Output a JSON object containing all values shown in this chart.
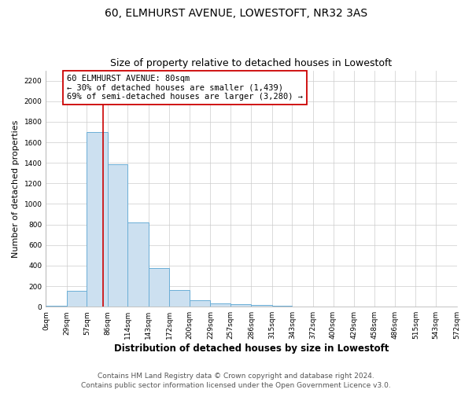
{
  "title": "60, ELMHURST AVENUE, LOWESTOFT, NR32 3AS",
  "subtitle": "Size of property relative to detached houses in Lowestoft",
  "xlabel": "Distribution of detached houses by size in Lowestoft",
  "ylabel": "Number of detached properties",
  "bar_edges": [
    0,
    29,
    57,
    86,
    114,
    143,
    172,
    200,
    229,
    257,
    286,
    315,
    343,
    372,
    400,
    429,
    458,
    486,
    515,
    543,
    572
  ],
  "bar_values": [
    10,
    155,
    1700,
    1390,
    820,
    380,
    160,
    65,
    30,
    25,
    20,
    10,
    5,
    0,
    0,
    0,
    0,
    0,
    0,
    0
  ],
  "bar_color": "#cce0f0",
  "bar_edge_color": "#6baed6",
  "bar_edge_width": 0.7,
  "property_size": 80,
  "property_line_color": "#cc0000",
  "annotation_line1": "60 ELMHURST AVENUE: 80sqm",
  "annotation_line2": "← 30% of detached houses are smaller (1,439)",
  "annotation_line3": "69% of semi-detached houses are larger (3,280) →",
  "annotation_box_color": "#ffffff",
  "annotation_box_edge_color": "#cc0000",
  "ylim": [
    0,
    2300
  ],
  "yticks": [
    0,
    200,
    400,
    600,
    800,
    1000,
    1200,
    1400,
    1600,
    1800,
    2000,
    2200
  ],
  "tick_labels": [
    "0sqm",
    "29sqm",
    "57sqm",
    "86sqm",
    "114sqm",
    "143sqm",
    "172sqm",
    "200sqm",
    "229sqm",
    "257sqm",
    "286sqm",
    "315sqm",
    "343sqm",
    "372sqm",
    "400sqm",
    "429sqm",
    "458sqm",
    "486sqm",
    "515sqm",
    "543sqm",
    "572sqm"
  ],
  "footer_line1": "Contains HM Land Registry data © Crown copyright and database right 2024.",
  "footer_line2": "Contains public sector information licensed under the Open Government Licence v3.0.",
  "grid_color": "#cccccc",
  "plot_bg_color": "#ffffff",
  "fig_bg_color": "#ffffff",
  "title_fontsize": 10,
  "subtitle_fontsize": 9,
  "xlabel_fontsize": 8.5,
  "ylabel_fontsize": 8,
  "tick_fontsize": 6.5,
  "annotation_fontsize": 7.5,
  "footer_fontsize": 6.5
}
